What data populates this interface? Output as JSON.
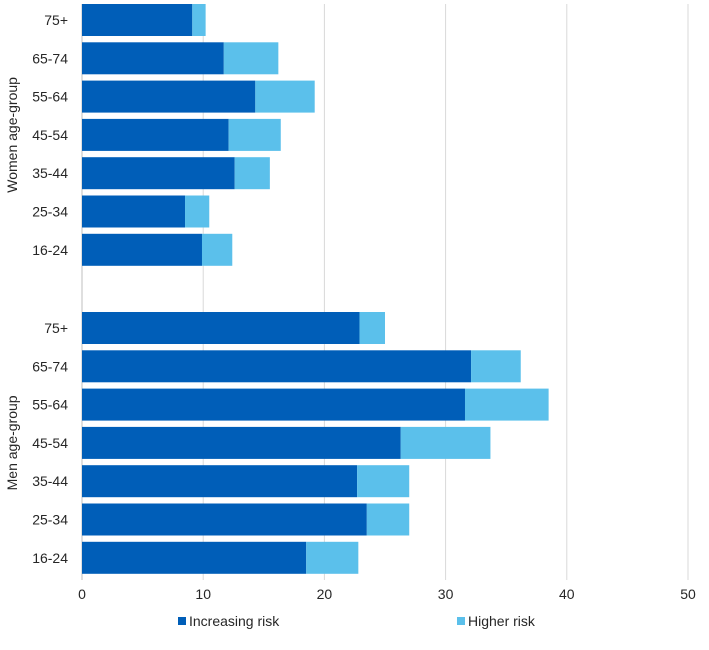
{
  "chart_data": {
    "type": "bar",
    "orientation": "horizontal",
    "stacked": true,
    "title": "",
    "xlabel": "",
    "ylabel": "",
    "xlim": [
      0,
      50
    ],
    "x_ticks": [
      "0",
      "10",
      "20",
      "30",
      "40",
      "50"
    ],
    "grid": true,
    "legend_position": "bottom",
    "groups": [
      {
        "label": "Women age-group",
        "categories": [
          "75+",
          "65-74",
          "55-64",
          "45-54",
          "35-44",
          "25-34",
          "16-24"
        ],
        "series": [
          {
            "name": "Increasing risk",
            "values": [
              9.1,
              11.7,
              14.3,
              12.1,
              12.6,
              8.5,
              9.9
            ]
          },
          {
            "name": "Higher risk",
            "values": [
              1.1,
              4.5,
              4.9,
              4.3,
              2.9,
              2.0,
              2.5
            ]
          }
        ]
      },
      {
        "label": "Men age-group",
        "categories": [
          "75+",
          "65-74",
          "55-64",
          "45-54",
          "35-44",
          "25-34",
          "16-24"
        ],
        "series": [
          {
            "name": "Increasing risk",
            "values": [
              22.9,
              32.1,
              31.6,
              26.3,
              22.7,
              23.5,
              18.5
            ]
          },
          {
            "name": "Higher risk",
            "values": [
              2.1,
              4.1,
              6.9,
              7.4,
              4.3,
              3.5,
              4.3
            ]
          }
        ]
      }
    ],
    "legend": [
      {
        "name": "Increasing risk",
        "color": "#005EB8"
      },
      {
        "name": "Higher risk",
        "color": "#5BC0EB"
      }
    ],
    "colors": {
      "increasing": "#005EB8",
      "higher": "#5BC0EB"
    }
  }
}
